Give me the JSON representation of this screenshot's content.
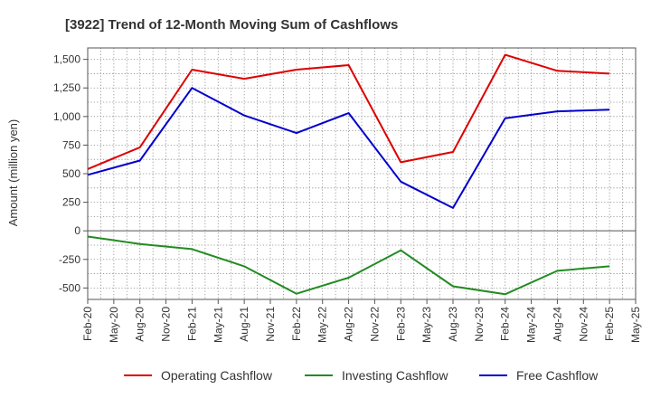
{
  "chart_data": {
    "type": "line",
    "title": "[3922]  Trend of 12-Month Moving Sum of Cashflows",
    "xlabel": "",
    "ylabel": "Amount (million yen)",
    "ylim": [
      -600,
      1600
    ],
    "yticks": [
      1500,
      1250,
      1000,
      750,
      500,
      250,
      0,
      -250,
      -500
    ],
    "ytick_labels": [
      "1,500",
      "1,250",
      "1,000",
      "750",
      "500",
      "250",
      "0",
      "-250",
      "-500"
    ],
    "x": [
      "Feb-20",
      "May-20",
      "Aug-20",
      "Nov-20",
      "Feb-21",
      "May-21",
      "Aug-21",
      "Nov-21",
      "Feb-22",
      "May-22",
      "Aug-22",
      "Nov-22",
      "Feb-23",
      "May-23",
      "Aug-23",
      "Nov-23",
      "Feb-24",
      "May-24",
      "Aug-24",
      "Nov-24",
      "Feb-25",
      "May-25"
    ],
    "grid": true,
    "legend_position": "bottom",
    "series": [
      {
        "name": "Operating Cashflow",
        "color": "#dd0000",
        "values": [
          540,
          null,
          730,
          null,
          1410,
          null,
          1330,
          null,
          1410,
          null,
          1450,
          null,
          600,
          null,
          690,
          null,
          1540,
          null,
          1400,
          null,
          1375,
          null
        ]
      },
      {
        "name": "Investing Cashflow",
        "color": "#228b22",
        "values": [
          -50,
          null,
          -115,
          null,
          -160,
          null,
          -310,
          null,
          -550,
          null,
          -410,
          null,
          -170,
          null,
          -485,
          null,
          -555,
          null,
          -350,
          null,
          -310,
          null
        ]
      },
      {
        "name": "Free Cashflow",
        "color": "#0000cc",
        "values": [
          490,
          null,
          615,
          null,
          1250,
          null,
          1010,
          null,
          855,
          null,
          1030,
          null,
          430,
          null,
          200,
          null,
          985,
          null,
          1045,
          null,
          1060,
          null
        ]
      }
    ]
  }
}
